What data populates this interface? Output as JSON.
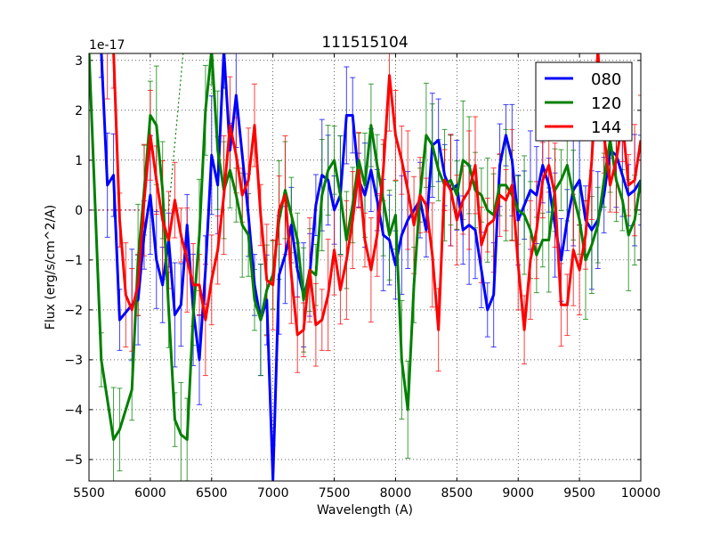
{
  "chart_data": {
    "type": "line",
    "title": "111515104",
    "xlabel": "Wavelength (A)",
    "ylabel": "Flux (erg/s/cm^2/A)",
    "offset_text": "1e-17",
    "xlim": [
      5500,
      10000
    ],
    "ylim": [
      -5.43,
      3.14
    ],
    "xticks": [
      "5500",
      "6000",
      "6500",
      "7000",
      "7500",
      "8000",
      "8500",
      "9000",
      "9500",
      "10000"
    ],
    "yticks": [
      "−5",
      "−4",
      "−3",
      "−2",
      "−1",
      "0",
      "1",
      "2",
      "3"
    ],
    "grid": true,
    "legend_position": "top-right",
    "series": [
      {
        "name": "080",
        "color": "#0000ff",
        "yerr": 0.9,
        "x": [
          5600,
          5650,
          5700,
          5750,
          5850,
          5900,
          5950,
          6000,
          6050,
          6100,
          6150,
          6200,
          6250,
          6300,
          6350,
          6400,
          6450,
          6500,
          6550,
          6600,
          6650,
          6700,
          6800,
          6850,
          6900,
          6950,
          7000,
          7050,
          7100,
          7150,
          7200,
          7250,
          7300,
          7350,
          7400,
          7450,
          7500,
          7550,
          7600,
          7650,
          7700,
          7750,
          7800,
          7850,
          7900,
          7950,
          8000,
          8050,
          8100,
          8200,
          8250,
          8300,
          8350,
          8400,
          8450,
          8500,
          8550,
          8600,
          8650,
          8700,
          8750,
          8800,
          8850,
          8900,
          8950,
          9000,
          9050,
          9100,
          9150,
          9200,
          9250,
          9300,
          9350,
          9400,
          9450,
          9500,
          9550,
          9600,
          9650,
          9700,
          9750,
          9800,
          9850,
          9900,
          9950,
          10000
        ],
        "y": [
          3.2,
          0.5,
          0.7,
          -2.2,
          -1.9,
          -1.8,
          -0.5,
          0.3,
          -1.0,
          -1.5,
          -0.6,
          -2.1,
          -1.9,
          -0.3,
          -2.0,
          -3.0,
          -1.2,
          1.1,
          0.5,
          3.2,
          1.2,
          2.3,
          -0.1,
          -1.5,
          -2.2,
          -1.8,
          -5.4,
          -1.3,
          -0.9,
          -0.3,
          -1.2,
          -1.7,
          -1.3,
          0.1,
          0.7,
          0.6,
          0.0,
          0.3,
          1.9,
          1.9,
          0.6,
          0.3,
          0.8,
          0.2,
          -0.5,
          -0.6,
          -1.1,
          -0.5,
          -0.2,
          0.2,
          -0.4,
          1.3,
          1.4,
          0.7,
          0.4,
          0.5,
          -0.4,
          -0.3,
          -0.4,
          -1.2,
          -2.0,
          -1.7,
          0.9,
          1.5,
          1.0,
          -0.2,
          0.1,
          0.4,
          0.3,
          0.9,
          0.5,
          -0.3,
          -1.0,
          -0.2,
          0.4,
          0.6,
          -0.2,
          -0.4,
          -0.2,
          0.3,
          1.2,
          1.1,
          0.7,
          0.3,
          0.4,
          0.6
        ]
      },
      {
        "name": "120",
        "color": "#008000",
        "yerr": 0.9,
        "x": [
          5500,
          5600,
          5700,
          5750,
          5850,
          5900,
          5950,
          6000,
          6050,
          6100,
          6150,
          6200,
          6250,
          6300,
          6350,
          6400,
          6450,
          6500,
          6550,
          6600,
          6650,
          6700,
          6750,
          6800,
          6850,
          6900,
          6950,
          7000,
          7050,
          7100,
          7150,
          7200,
          7250,
          7300,
          7350,
          7400,
          7450,
          7500,
          7550,
          7600,
          7650,
          7700,
          7750,
          7800,
          7850,
          7900,
          7950,
          8000,
          8050,
          8100,
          8150,
          8200,
          8250,
          8300,
          8350,
          8400,
          8450,
          8500,
          8550,
          8600,
          8650,
          8700,
          8750,
          8800,
          8850,
          8900,
          8950,
          9000,
          9050,
          9100,
          9150,
          9200,
          9250,
          9300,
          9350,
          9400,
          9450,
          9500,
          9550,
          9600,
          9650,
          9700,
          9750,
          9800,
          9850,
          9900,
          9950,
          10000
        ],
        "y": [
          3.2,
          -3.0,
          -4.6,
          -4.4,
          -3.6,
          -1.0,
          0.4,
          1.9,
          1.7,
          0.4,
          -2.0,
          -4.2,
          -4.5,
          -4.6,
          -2.1,
          -0.5,
          2.0,
          3.2,
          1.2,
          0.4,
          0.8,
          0.3,
          -0.3,
          -0.5,
          -1.8,
          -2.2,
          -1.6,
          -1.3,
          -0.2,
          0.4,
          -0.1,
          -0.6,
          -1.8,
          -1.2,
          -1.3,
          0.3,
          0.8,
          1.0,
          0.3,
          -0.6,
          0.1,
          1.0,
          0.5,
          1.7,
          0.9,
          0.2,
          -0.5,
          -0.1,
          -3.0,
          -4.0,
          -1.5,
          0.3,
          1.5,
          1.3,
          0.8,
          0.5,
          0.6,
          0.3,
          1.0,
          0.9,
          0.4,
          0.3,
          0.0,
          -0.1,
          0.5,
          0.5,
          0.3,
          0.0,
          -0.1,
          -0.4,
          -0.9,
          -0.6,
          -0.6,
          0.4,
          0.6,
          0.9,
          0.3,
          -0.2,
          -1.0,
          -0.7,
          -0.3,
          0.6,
          1.4,
          0.6,
          0.2,
          -0.5,
          -0.2,
          0.6
        ]
      },
      {
        "name": "144",
        "color": "#ff0000",
        "yerr": 0.9,
        "x": [
          5650,
          5700,
          5750,
          5800,
          5850,
          5900,
          5950,
          6000,
          6050,
          6100,
          6150,
          6200,
          6250,
          6300,
          6350,
          6400,
          6450,
          6500,
          6550,
          6600,
          6650,
          6700,
          6750,
          6800,
          6850,
          6900,
          6950,
          7000,
          7050,
          7100,
          7150,
          7200,
          7250,
          7300,
          7350,
          7400,
          7450,
          7500,
          7550,
          7600,
          7650,
          7700,
          7750,
          7800,
          7850,
          7900,
          7950,
          8000,
          8050,
          8100,
          8150,
          8200,
          8250,
          8300,
          8350,
          8400,
          8450,
          8500,
          8550,
          8600,
          8650,
          8700,
          8750,
          8800,
          8850,
          8900,
          8950,
          9000,
          9050,
          9100,
          9150,
          9200,
          9250,
          9300,
          9350,
          9400,
          9450,
          9500,
          9550,
          9600,
          9650,
          9700,
          9750,
          9800,
          9850,
          9900,
          9950,
          10000
        ],
        "y": [
          3.2,
          3.2,
          -0.2,
          -1.7,
          -2.0,
          -1.5,
          0.2,
          1.5,
          0.6,
          -0.2,
          -0.6,
          0.2,
          -0.5,
          -1.0,
          -1.5,
          -1.5,
          -2.2,
          -1.4,
          -0.8,
          0.3,
          1.7,
          1.1,
          0.3,
          0.6,
          1.7,
          -0.1,
          -1.4,
          -1.5,
          0.0,
          0.3,
          -1.3,
          -2.5,
          -2.4,
          -1.2,
          -2.3,
          -2.2,
          -1.7,
          -0.8,
          -1.6,
          -1.0,
          -0.2,
          0.8,
          -0.6,
          -1.2,
          -0.5,
          0.8,
          2.7,
          1.5,
          1.0,
          0.4,
          -0.3,
          0.3,
          0.1,
          -0.9,
          -2.4,
          0.6,
          0.4,
          -0.2,
          0.2,
          0.4,
          0.9,
          -0.7,
          -0.3,
          -0.2,
          0.3,
          0.2,
          0.5,
          -1.1,
          -2.4,
          -1.0,
          -0.4,
          0.6,
          0.9,
          0.3,
          -1.9,
          -1.9,
          -0.8,
          -1.2,
          -0.5,
          1.0,
          3.2,
          1.5,
          0.5,
          1.0,
          1.8,
          0.5,
          0.6,
          1.4
        ]
      }
    ],
    "reference_lines": [
      {
        "color": "#a0205a",
        "x": [
          5500,
          6150
        ],
        "y": [
          0,
          0
        ]
      },
      {
        "color": "#008000",
        "x": [
          6150,
          6270
        ],
        "y": [
          0,
          3.2
        ]
      }
    ]
  }
}
